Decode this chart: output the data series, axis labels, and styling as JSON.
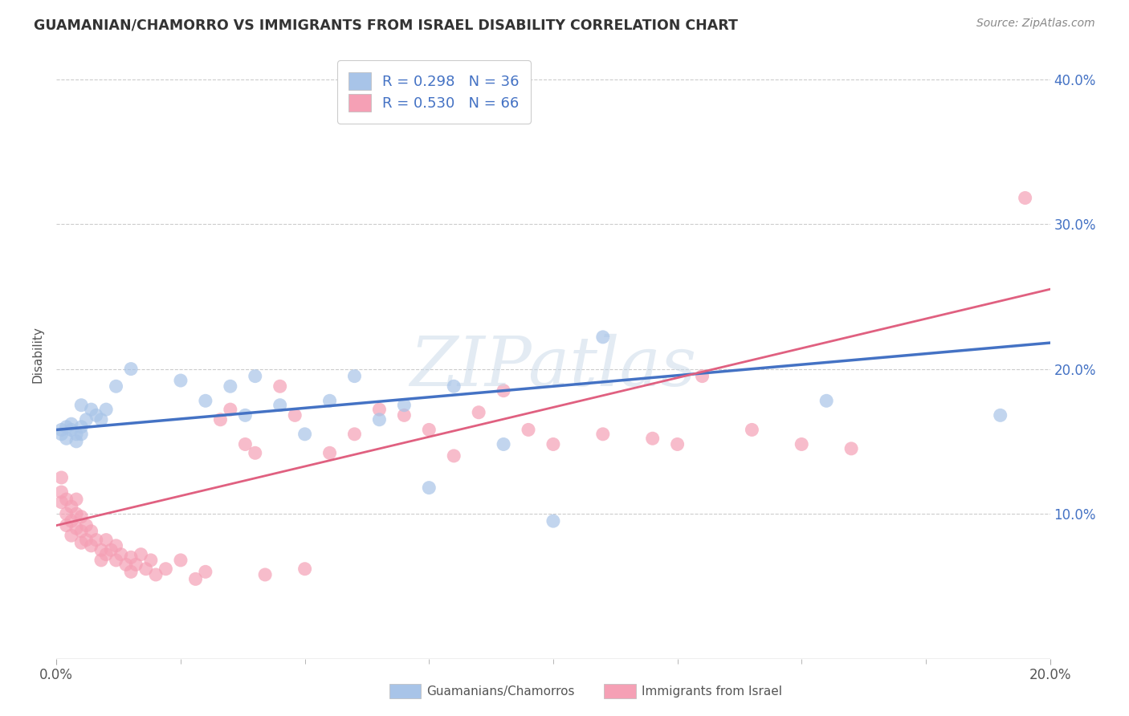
{
  "title": "GUAMANIAN/CHAMORRO VS IMMIGRANTS FROM ISRAEL DISABILITY CORRELATION CHART",
  "source": "Source: ZipAtlas.com",
  "ylabel": "Disability",
  "xlim": [
    0.0,
    0.2
  ],
  "ylim": [
    0.0,
    0.42
  ],
  "xticks": [
    0.0,
    0.2
  ],
  "xtick_labels": [
    "0.0%",
    "20.0%"
  ],
  "yticks": [
    0.0,
    0.1,
    0.2,
    0.3,
    0.4
  ],
  "ytick_labels": [
    "",
    "10.0%",
    "20.0%",
    "30.0%",
    "40.0%"
  ],
  "blue_R": 0.298,
  "blue_N": 36,
  "pink_R": 0.53,
  "pink_N": 66,
  "blue_label": "Guamanians/Chamorros",
  "pink_label": "Immigrants from Israel",
  "blue_color": "#a8c4e8",
  "pink_color": "#f5a0b5",
  "blue_line_color": "#4472c4",
  "pink_line_color": "#e06080",
  "background_color": "#ffffff",
  "watermark": "ZIPatlas",
  "blue_trendline_x0": 0.0,
  "blue_trendline_y0": 0.158,
  "blue_trendline_x1": 0.2,
  "blue_trendline_y1": 0.218,
  "pink_trendline_x0": 0.0,
  "pink_trendline_y0": 0.092,
  "pink_trendline_x1": 0.2,
  "pink_trendline_y1": 0.255,
  "blue_x": [
    0.001,
    0.001,
    0.002,
    0.002,
    0.003,
    0.003,
    0.004,
    0.004,
    0.005,
    0.005,
    0.005,
    0.006,
    0.007,
    0.008,
    0.009,
    0.01,
    0.012,
    0.015,
    0.025,
    0.03,
    0.035,
    0.038,
    0.04,
    0.045,
    0.05,
    0.055,
    0.06,
    0.065,
    0.07,
    0.075,
    0.08,
    0.09,
    0.1,
    0.11,
    0.155,
    0.19
  ],
  "blue_y": [
    0.158,
    0.155,
    0.16,
    0.152,
    0.158,
    0.162,
    0.155,
    0.15,
    0.16,
    0.175,
    0.155,
    0.165,
    0.172,
    0.168,
    0.165,
    0.172,
    0.188,
    0.2,
    0.192,
    0.178,
    0.188,
    0.168,
    0.195,
    0.175,
    0.155,
    0.178,
    0.195,
    0.165,
    0.175,
    0.118,
    0.188,
    0.148,
    0.095,
    0.222,
    0.178,
    0.168
  ],
  "pink_x": [
    0.001,
    0.001,
    0.001,
    0.002,
    0.002,
    0.002,
    0.003,
    0.003,
    0.003,
    0.004,
    0.004,
    0.004,
    0.005,
    0.005,
    0.005,
    0.006,
    0.006,
    0.007,
    0.007,
    0.008,
    0.009,
    0.009,
    0.01,
    0.01,
    0.011,
    0.012,
    0.012,
    0.013,
    0.014,
    0.015,
    0.015,
    0.016,
    0.017,
    0.018,
    0.019,
    0.02,
    0.022,
    0.025,
    0.028,
    0.03,
    0.033,
    0.035,
    0.038,
    0.04,
    0.042,
    0.045,
    0.048,
    0.05,
    0.055,
    0.06,
    0.065,
    0.07,
    0.075,
    0.08,
    0.085,
    0.09,
    0.095,
    0.1,
    0.11,
    0.12,
    0.125,
    0.13,
    0.14,
    0.15,
    0.16,
    0.195
  ],
  "pink_y": [
    0.125,
    0.115,
    0.108,
    0.11,
    0.1,
    0.092,
    0.105,
    0.095,
    0.085,
    0.11,
    0.1,
    0.09,
    0.098,
    0.088,
    0.08,
    0.092,
    0.082,
    0.088,
    0.078,
    0.082,
    0.075,
    0.068,
    0.082,
    0.072,
    0.075,
    0.068,
    0.078,
    0.072,
    0.065,
    0.07,
    0.06,
    0.065,
    0.072,
    0.062,
    0.068,
    0.058,
    0.062,
    0.068,
    0.055,
    0.06,
    0.165,
    0.172,
    0.148,
    0.142,
    0.058,
    0.188,
    0.168,
    0.062,
    0.142,
    0.155,
    0.172,
    0.168,
    0.158,
    0.14,
    0.17,
    0.185,
    0.158,
    0.148,
    0.155,
    0.152,
    0.148,
    0.195,
    0.158,
    0.148,
    0.145,
    0.318
  ]
}
